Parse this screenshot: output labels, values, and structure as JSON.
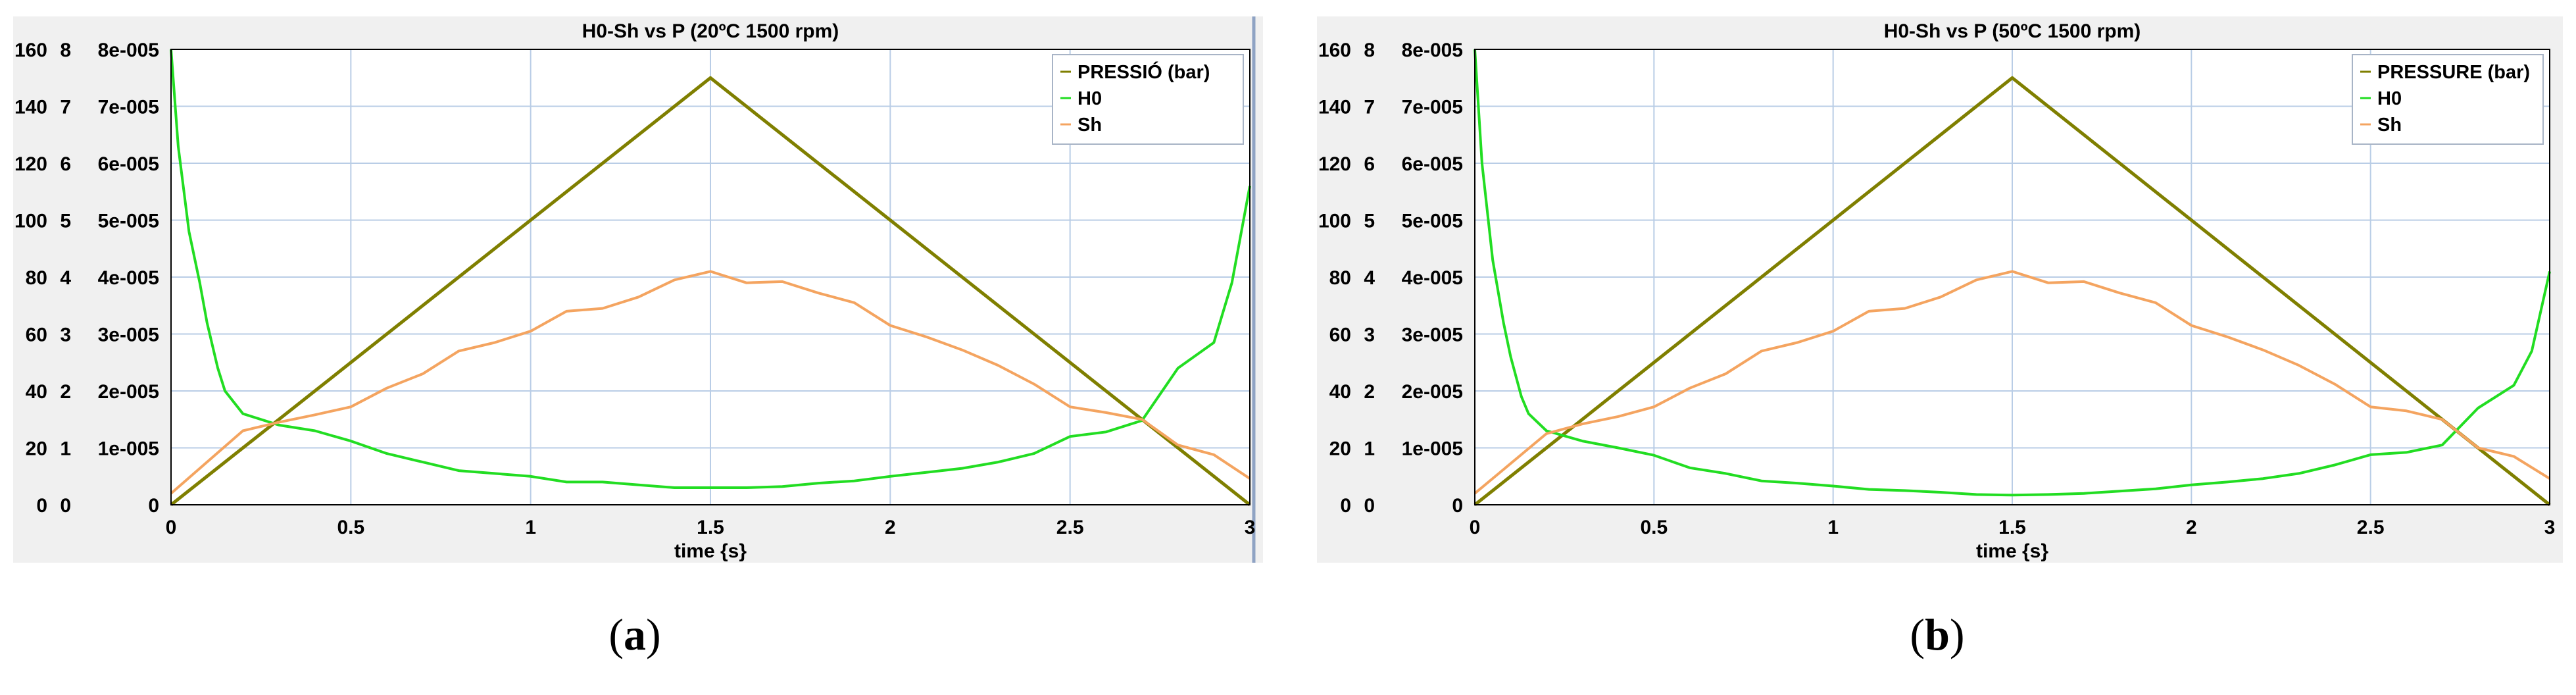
{
  "chart_data": [
    {
      "type": "line",
      "title": "H0-Sh vs P (20ºC 1500 rpm)",
      "xlabel": "time {s}",
      "xlim": [
        0,
        3
      ],
      "x_ticks": [
        "0",
        "0.5",
        "1",
        "1.5",
        "2",
        "2.5",
        "3"
      ],
      "x_tick_values": [
        0,
        0.5,
        1,
        1.5,
        2,
        2.5,
        3
      ],
      "y_axes": [
        {
          "ticks": [
            "0",
            "20",
            "40",
            "60",
            "80",
            "100",
            "120",
            "140",
            "160"
          ],
          "range": [
            0,
            160
          ]
        },
        {
          "ticks": [
            "0",
            "1",
            "2",
            "3",
            "4",
            "5",
            "6",
            "7",
            "8"
          ],
          "range": [
            0,
            8
          ]
        },
        {
          "ticks": [
            "0",
            "1e-005",
            "2e-005",
            "3e-005",
            "4e-005",
            "5e-005",
            "6e-005",
            "7e-005",
            "8e-005"
          ],
          "range": [
            0,
            8e-05
          ]
        }
      ],
      "grid": true,
      "legend_position": "top-right",
      "series": [
        {
          "name": "PRESSIÓ (bar)",
          "color": "#7f7f00",
          "axis": 0,
          "x": [
            0,
            1.5,
            3
          ],
          "y": [
            0,
            150,
            0
          ]
        },
        {
          "name": "H0",
          "color": "#22dd22",
          "axis": 1,
          "x": [
            0,
            0.02,
            0.05,
            0.08,
            0.1,
            0.13,
            0.15,
            0.2,
            0.3,
            0.4,
            0.5,
            0.6,
            0.7,
            0.8,
            0.9,
            1.0,
            1.1,
            1.2,
            1.3,
            1.4,
            1.5,
            1.6,
            1.7,
            1.8,
            1.9,
            2.0,
            2.1,
            2.2,
            2.3,
            2.4,
            2.5,
            2.6,
            2.7,
            2.8,
            2.9,
            2.95,
            3.0
          ],
          "y": [
            8,
            6.3,
            4.8,
            3.9,
            3.2,
            2.4,
            2.0,
            1.6,
            1.4,
            1.3,
            1.12,
            0.9,
            0.75,
            0.6,
            0.55,
            0.5,
            0.4,
            0.4,
            0.35,
            0.3,
            0.3,
            0.3,
            0.32,
            0.38,
            0.42,
            0.5,
            0.57,
            0.64,
            0.75,
            0.9,
            1.2,
            1.28,
            1.48,
            2.4,
            2.85,
            3.9,
            5.6
          ]
        },
        {
          "name": "Sh",
          "color": "#f4a460",
          "axis": 1,
          "x": [
            0,
            0.2,
            0.3,
            0.4,
            0.5,
            0.6,
            0.7,
            0.8,
            0.9,
            1.0,
            1.1,
            1.2,
            1.3,
            1.4,
            1.5,
            1.6,
            1.7,
            1.8,
            1.9,
            2.0,
            2.1,
            2.2,
            2.3,
            2.4,
            2.5,
            2.6,
            2.7,
            2.8,
            2.9,
            3.0
          ],
          "y": [
            0.2,
            1.3,
            1.45,
            1.58,
            1.72,
            2.05,
            2.3,
            2.7,
            2.85,
            3.05,
            3.4,
            3.45,
            3.65,
            3.95,
            4.1,
            3.9,
            3.92,
            3.72,
            3.55,
            3.15,
            2.95,
            2.72,
            2.45,
            2.12,
            1.72,
            1.62,
            1.5,
            1.05,
            0.88,
            0.46
          ]
        }
      ]
    },
    {
      "type": "line",
      "title": "H0-Sh vs P (50ºC 1500 rpm)",
      "xlabel": "time {s}",
      "xlim": [
        0,
        3
      ],
      "x_ticks": [
        "0",
        "0.5",
        "1",
        "1.5",
        "2",
        "2.5",
        "3"
      ],
      "x_tick_values": [
        0,
        0.5,
        1,
        1.5,
        2,
        2.5,
        3
      ],
      "y_axes": [
        {
          "ticks": [
            "0",
            "20",
            "40",
            "60",
            "80",
            "100",
            "120",
            "140",
            "160"
          ],
          "range": [
            0,
            160
          ]
        },
        {
          "ticks": [
            "0",
            "1",
            "2",
            "3",
            "4",
            "5",
            "6",
            "7",
            "8"
          ],
          "range": [
            0,
            8
          ]
        },
        {
          "ticks": [
            "0",
            "1e-005",
            "2e-005",
            "3e-005",
            "4e-005",
            "5e-005",
            "6e-005",
            "7e-005",
            "8e-005"
          ],
          "range": [
            0,
            8e-05
          ]
        }
      ],
      "grid": true,
      "legend_position": "top-right",
      "series": [
        {
          "name": "PRESSURE (bar)",
          "color": "#7f7f00",
          "axis": 0,
          "x": [
            0,
            1.5,
            3
          ],
          "y": [
            0,
            150,
            0
          ]
        },
        {
          "name": "H0",
          "color": "#22dd22",
          "axis": 1,
          "x": [
            0,
            0.02,
            0.05,
            0.08,
            0.1,
            0.13,
            0.15,
            0.2,
            0.3,
            0.4,
            0.5,
            0.6,
            0.7,
            0.8,
            0.9,
            1.0,
            1.1,
            1.2,
            1.3,
            1.4,
            1.5,
            1.6,
            1.7,
            1.8,
            1.9,
            2.0,
            2.1,
            2.2,
            2.3,
            2.4,
            2.5,
            2.6,
            2.7,
            2.8,
            2.9,
            2.95,
            3.0
          ],
          "y": [
            8,
            6.0,
            4.3,
            3.2,
            2.6,
            1.9,
            1.6,
            1.3,
            1.12,
            1.0,
            0.87,
            0.65,
            0.55,
            0.42,
            0.38,
            0.33,
            0.27,
            0.25,
            0.22,
            0.18,
            0.17,
            0.18,
            0.2,
            0.24,
            0.28,
            0.35,
            0.4,
            0.46,
            0.55,
            0.7,
            0.88,
            0.92,
            1.05,
            1.7,
            2.1,
            2.7,
            4.1
          ]
        },
        {
          "name": "Sh",
          "color": "#f4a460",
          "axis": 1,
          "x": [
            0,
            0.2,
            0.3,
            0.4,
            0.5,
            0.6,
            0.7,
            0.8,
            0.9,
            1.0,
            1.1,
            1.2,
            1.3,
            1.4,
            1.5,
            1.6,
            1.7,
            1.8,
            1.9,
            2.0,
            2.1,
            2.2,
            2.3,
            2.4,
            2.5,
            2.6,
            2.7,
            2.8,
            2.9,
            3.0
          ],
          "y": [
            0.2,
            1.25,
            1.42,
            1.55,
            1.72,
            2.05,
            2.3,
            2.7,
            2.85,
            3.05,
            3.4,
            3.45,
            3.65,
            3.95,
            4.1,
            3.9,
            3.92,
            3.72,
            3.55,
            3.15,
            2.95,
            2.72,
            2.45,
            2.12,
            1.72,
            1.65,
            1.5,
            1.0,
            0.85,
            0.46
          ]
        }
      ]
    }
  ],
  "subfigure_labels": [
    "a",
    "b"
  ]
}
